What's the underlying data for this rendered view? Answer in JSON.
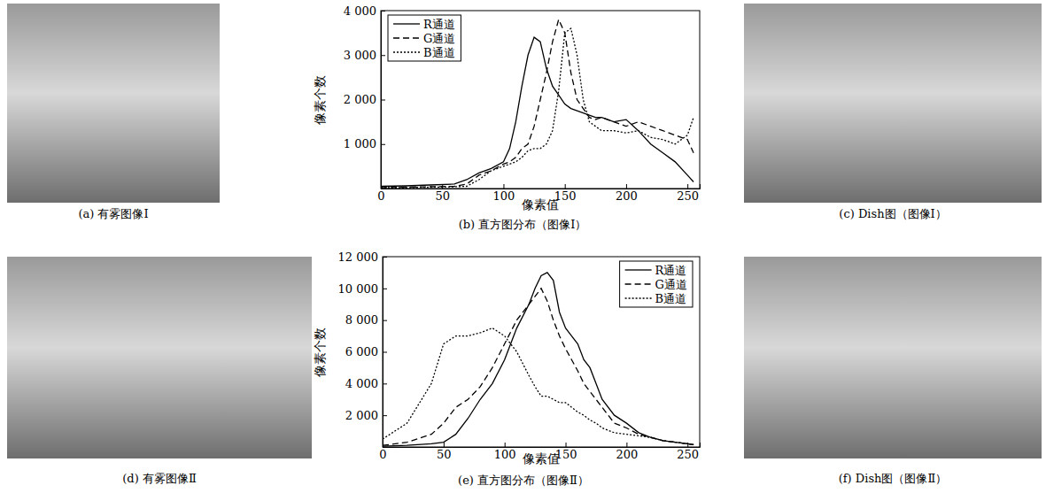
{
  "chart_data": [
    {
      "type": "line",
      "title": "(b) 直方图分布（图像Ⅰ）",
      "xlabel": "像素值",
      "ylabel": "像素个数",
      "x": [
        0,
        20,
        40,
        60,
        70,
        80,
        90,
        100,
        105,
        110,
        115,
        120,
        125,
        130,
        135,
        140,
        145,
        150,
        155,
        160,
        165,
        170,
        175,
        180,
        190,
        200,
        210,
        220,
        230,
        240,
        250,
        255
      ],
      "series": [
        {
          "name": "R通道",
          "color": "#000000",
          "line_style": "solid",
          "values": [
            50,
            60,
            80,
            100,
            200,
            350,
            450,
            600,
            900,
            1500,
            2300,
            3000,
            3400,
            3300,
            2700,
            2300,
            2100,
            1900,
            1800,
            1750,
            1700,
            1650,
            1600,
            1600,
            1500,
            1550,
            1300,
            1000,
            800,
            600,
            300,
            150
          ]
        },
        {
          "name": "G通道",
          "color": "#000000",
          "line_style": "dashed",
          "values": [
            20,
            30,
            40,
            50,
            100,
            300,
            400,
            550,
            600,
            700,
            900,
            1000,
            1400,
            2000,
            2600,
            3300,
            3800,
            3500,
            2600,
            2000,
            1800,
            1600,
            1550,
            1600,
            1500,
            1400,
            1500,
            1400,
            1300,
            1200,
            1100,
            800
          ]
        },
        {
          "name": "B通道",
          "color": "#000000",
          "line_style": "dotted",
          "values": [
            20,
            20,
            30,
            40,
            50,
            200,
            400,
            500,
            550,
            600,
            700,
            850,
            900,
            900,
            1000,
            1300,
            2200,
            3500,
            3600,
            3000,
            2000,
            1500,
            1400,
            1300,
            1300,
            1250,
            1300,
            1150,
            1100,
            1000,
            1200,
            1600
          ]
        }
      ],
      "xlim": [
        0,
        260
      ],
      "xticks": [
        0,
        50,
        100,
        150,
        200,
        250
      ],
      "ylim": [
        0,
        4000
      ],
      "yticks": [
        {
          "value": 1000,
          "label": "1 000"
        },
        {
          "value": 2000,
          "label": "2 000"
        },
        {
          "value": 3000,
          "label": "3 000"
        },
        {
          "value": 4000,
          "label": "4 000"
        }
      ],
      "legend": "top-left"
    },
    {
      "type": "line",
      "title": "(e) 直方图分布（图像Ⅱ）",
      "xlabel": "像素值",
      "ylabel": "像素个数",
      "x": [
        0,
        20,
        40,
        50,
        60,
        70,
        80,
        90,
        100,
        110,
        120,
        125,
        130,
        135,
        140,
        145,
        150,
        155,
        160,
        165,
        170,
        175,
        180,
        190,
        200,
        210,
        220,
        230,
        240,
        250,
        255
      ],
      "series": [
        {
          "name": "R通道",
          "color": "#000000",
          "line_style": "solid",
          "values": [
            50,
            100,
            200,
            300,
            800,
            1800,
            3000,
            4000,
            5500,
            7500,
            9000,
            10000,
            10800,
            11000,
            10500,
            8500,
            7500,
            7000,
            6500,
            5500,
            5000,
            4000,
            3000,
            2000,
            1500,
            900,
            600,
            400,
            300,
            200,
            150
          ]
        },
        {
          "name": "G通道",
          "color": "#000000",
          "line_style": "dashed",
          "values": [
            100,
            300,
            800,
            1500,
            2500,
            3000,
            3800,
            5000,
            6500,
            8000,
            9000,
            9500,
            10000,
            9200,
            8000,
            7000,
            6200,
            5500,
            4800,
            4000,
            3500,
            3000,
            2500,
            1500,
            1200,
            800,
            600,
            400,
            300,
            200,
            150
          ]
        },
        {
          "name": "B通道",
          "color": "#000000",
          "line_style": "dotted",
          "values": [
            500,
            1500,
            4000,
            6500,
            7000,
            7000,
            7200,
            7500,
            7000,
            6000,
            4500,
            3800,
            3200,
            3200,
            3000,
            2800,
            2800,
            2500,
            2200,
            2000,
            1700,
            1500,
            1200,
            900,
            800,
            700,
            600,
            400,
            300,
            200,
            150
          ]
        }
      ],
      "xlim": [
        0,
        260
      ],
      "xticks": [
        0,
        50,
        100,
        150,
        200,
        250
      ],
      "ylim": [
        0,
        12000
      ],
      "yticks": [
        {
          "value": 2000,
          "label": "2 000"
        },
        {
          "value": 4000,
          "label": "4 000"
        },
        {
          "value": 6000,
          "label": "6 000"
        },
        {
          "value": 8000,
          "label": "8 000"
        },
        {
          "value": 10000,
          "label": "10 000"
        },
        {
          "value": 12000,
          "label": "12 000"
        }
      ],
      "legend": "top-right"
    }
  ],
  "images": [
    {
      "caption": "(a) 有雾图像Ⅰ"
    },
    {
      "caption": "(c) Dish图（图像Ⅰ）"
    },
    {
      "caption": "(d) 有雾图像Ⅱ"
    },
    {
      "caption": "(f) Dish图（图像Ⅱ）"
    }
  ]
}
